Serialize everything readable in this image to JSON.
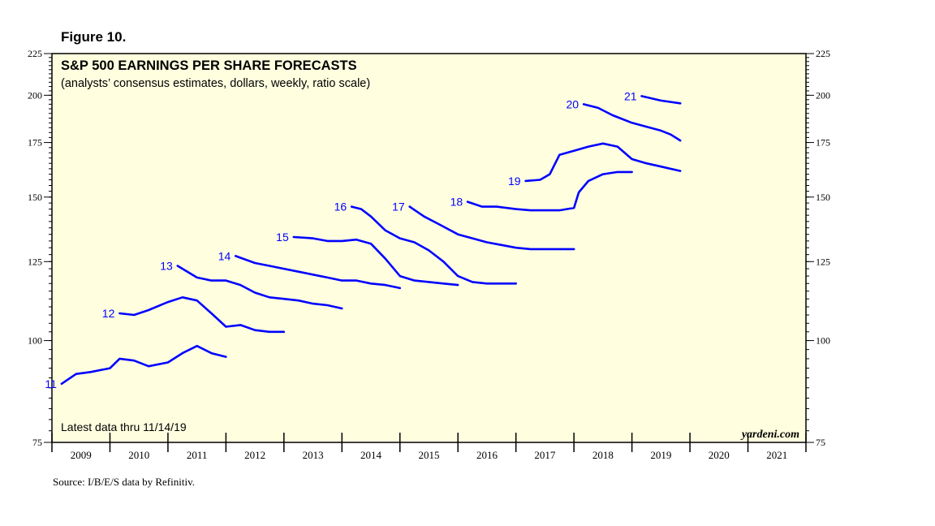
{
  "figure_label": "Figure 10.",
  "source": "Source: I/B/E/S data by Refinitiv.",
  "chart_data": {
    "type": "line",
    "title": "S&P 500 EARNINGS PER SHARE FORECASTS",
    "subtitle": "(analysts’ consensus estimates, dollars, weekly, ratio scale)",
    "xlabel": "",
    "ylabel": "",
    "scale": "log",
    "ylim": [
      75,
      225
    ],
    "y_ticks": [
      75,
      100,
      125,
      150,
      175,
      200,
      225
    ],
    "x_ticks": [
      "2009",
      "2010",
      "2011",
      "2012",
      "2013",
      "2014",
      "2015",
      "2016",
      "2017",
      "2018",
      "2019",
      "2020",
      "2021"
    ],
    "xlim": [
      "2009-01",
      "2022-01"
    ],
    "grid": false,
    "background": "#ffffe0",
    "line_color": "#0000ff",
    "note": "Latest data thru 11/14/19",
    "watermark": "yardeni.com",
    "series": [
      {
        "name": "11",
        "points": [
          [
            "2009-03",
            88.5
          ],
          [
            "2009-06",
            91.0
          ],
          [
            "2009-09",
            91.5
          ],
          [
            "2010-01",
            92.5
          ],
          [
            "2010-03",
            95.0
          ],
          [
            "2010-06",
            94.5
          ],
          [
            "2010-09",
            93.0
          ],
          [
            "2011-01",
            94.0
          ],
          [
            "2011-04",
            96.5
          ],
          [
            "2011-07",
            98.5
          ],
          [
            "2011-10",
            96.5
          ],
          [
            "2012-01",
            95.5
          ]
        ]
      },
      {
        "name": "12",
        "points": [
          [
            "2010-03",
            108.0
          ],
          [
            "2010-06",
            107.5
          ],
          [
            "2010-09",
            109.0
          ],
          [
            "2011-01",
            111.5
          ],
          [
            "2011-04",
            113.0
          ],
          [
            "2011-07",
            112.0
          ],
          [
            "2011-10",
            108.0
          ],
          [
            "2012-01",
            104.0
          ],
          [
            "2012-04",
            104.5
          ],
          [
            "2012-07",
            103.0
          ],
          [
            "2012-10",
            102.5
          ],
          [
            "2013-01",
            102.5
          ]
        ]
      },
      {
        "name": "13",
        "points": [
          [
            "2011-03",
            123.5
          ],
          [
            "2011-07",
            119.5
          ],
          [
            "2011-10",
            118.5
          ],
          [
            "2012-01",
            118.5
          ],
          [
            "2012-04",
            117.0
          ],
          [
            "2012-07",
            114.5
          ],
          [
            "2012-10",
            113.0
          ],
          [
            "2013-01",
            112.5
          ],
          [
            "2013-04",
            112.0
          ],
          [
            "2013-07",
            111.0
          ],
          [
            "2013-10",
            110.5
          ],
          [
            "2014-01",
            109.5
          ]
        ]
      },
      {
        "name": "14",
        "points": [
          [
            "2012-03",
            127.0
          ],
          [
            "2012-07",
            124.5
          ],
          [
            "2012-10",
            123.5
          ],
          [
            "2013-01",
            122.5
          ],
          [
            "2013-04",
            121.5
          ],
          [
            "2013-07",
            120.5
          ],
          [
            "2013-10",
            119.5
          ],
          [
            "2014-01",
            118.5
          ],
          [
            "2014-04",
            118.5
          ],
          [
            "2014-07",
            117.5
          ],
          [
            "2014-10",
            117.0
          ],
          [
            "2015-01",
            116.0
          ]
        ]
      },
      {
        "name": "15",
        "points": [
          [
            "2013-03",
            134.0
          ],
          [
            "2013-07",
            133.5
          ],
          [
            "2013-10",
            132.5
          ],
          [
            "2014-01",
            132.5
          ],
          [
            "2014-04",
            133.0
          ],
          [
            "2014-07",
            131.5
          ],
          [
            "2014-10",
            126.0
          ],
          [
            "2015-01",
            120.0
          ],
          [
            "2015-04",
            118.5
          ],
          [
            "2015-07",
            118.0
          ],
          [
            "2015-10",
            117.5
          ],
          [
            "2016-01",
            117.0
          ]
        ]
      },
      {
        "name": "16",
        "points": [
          [
            "2014-03",
            146.0
          ],
          [
            "2014-05",
            145.0
          ],
          [
            "2014-07",
            142.0
          ],
          [
            "2014-10",
            136.5
          ],
          [
            "2015-01",
            133.5
          ],
          [
            "2015-04",
            132.0
          ],
          [
            "2015-07",
            129.0
          ],
          [
            "2015-10",
            125.0
          ],
          [
            "2016-01",
            120.0
          ],
          [
            "2016-04",
            118.0
          ],
          [
            "2016-07",
            117.5
          ],
          [
            "2016-10",
            117.5
          ],
          [
            "2017-01",
            117.5
          ]
        ]
      },
      {
        "name": "17",
        "points": [
          [
            "2015-03",
            146.0
          ],
          [
            "2015-06",
            142.0
          ],
          [
            "2015-09",
            139.0
          ],
          [
            "2016-01",
            135.0
          ],
          [
            "2016-04",
            133.5
          ],
          [
            "2016-07",
            132.0
          ],
          [
            "2016-10",
            131.0
          ],
          [
            "2017-01",
            130.0
          ],
          [
            "2017-04",
            129.5
          ],
          [
            "2017-07",
            129.5
          ],
          [
            "2017-10",
            129.5
          ],
          [
            "2018-01",
            129.5
          ]
        ]
      },
      {
        "name": "18",
        "points": [
          [
            "2016-03",
            148.0
          ],
          [
            "2016-06",
            146.0
          ],
          [
            "2016-09",
            146.0
          ],
          [
            "2017-01",
            145.0
          ],
          [
            "2017-04",
            144.5
          ],
          [
            "2017-07",
            144.5
          ],
          [
            "2017-10",
            144.5
          ],
          [
            "2018-01",
            145.5
          ],
          [
            "2018-02",
            152.0
          ],
          [
            "2018-04",
            157.0
          ],
          [
            "2018-07",
            160.0
          ],
          [
            "2018-10",
            161.0
          ],
          [
            "2019-01",
            161.0
          ]
        ]
      },
      {
        "name": "19",
        "points": [
          [
            "2017-03",
            157.0
          ],
          [
            "2017-06",
            157.5
          ],
          [
            "2017-08",
            160.0
          ],
          [
            "2017-10",
            169.0
          ],
          [
            "2018-01",
            171.0
          ],
          [
            "2018-04",
            173.0
          ],
          [
            "2018-07",
            174.5
          ],
          [
            "2018-10",
            173.0
          ],
          [
            "2019-01",
            167.0
          ],
          [
            "2019-04",
            165.0
          ],
          [
            "2019-07",
            163.5
          ],
          [
            "2019-11",
            161.5
          ]
        ]
      },
      {
        "name": "20",
        "points": [
          [
            "2018-03",
            195.0
          ],
          [
            "2018-06",
            193.0
          ],
          [
            "2018-09",
            189.0
          ],
          [
            "2019-01",
            185.0
          ],
          [
            "2019-04",
            183.0
          ],
          [
            "2019-07",
            181.0
          ],
          [
            "2019-09",
            179.0
          ],
          [
            "2019-11",
            176.0
          ]
        ]
      },
      {
        "name": "21",
        "points": [
          [
            "2019-03",
            199.5
          ],
          [
            "2019-07",
            197.0
          ],
          [
            "2019-11",
            195.5
          ]
        ]
      }
    ]
  }
}
